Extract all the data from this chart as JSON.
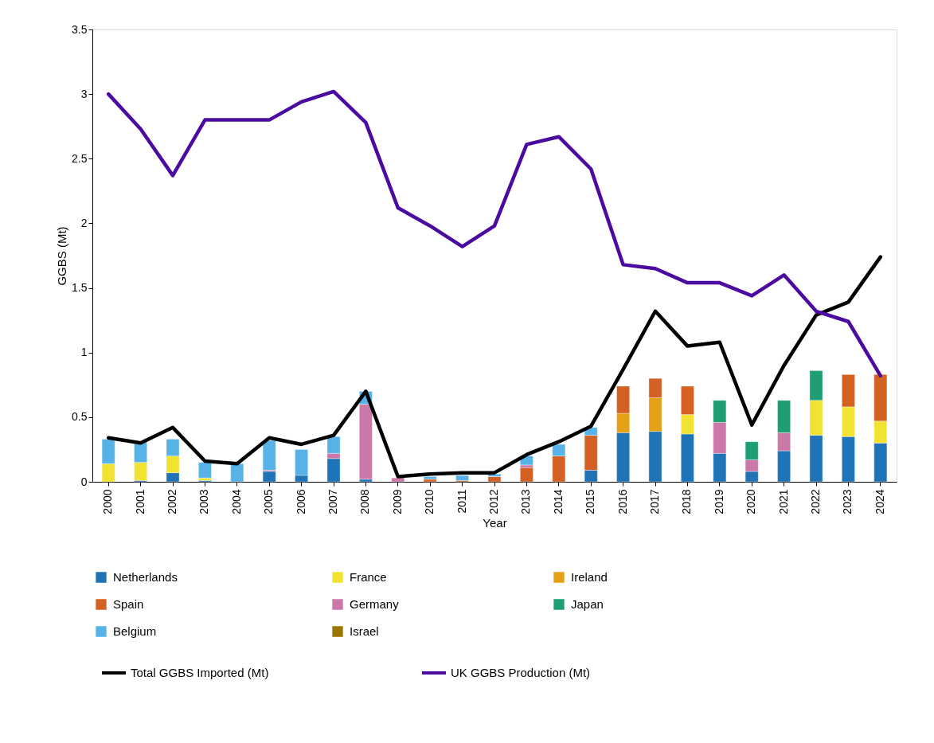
{
  "chart_data": {
    "type": "bar",
    "stacked": true,
    "xlabel": "Year",
    "ylabel": "GGBS (Mt)",
    "legend": "bottom",
    "grid": false,
    "marker": "none",
    "line_style": "solid",
    "categories": [
      "2000",
      "2001",
      "2002",
      "2003",
      "2004",
      "2005",
      "2006",
      "2007",
      "2008",
      "2009",
      "2010",
      "2011",
      "2012",
      "2013",
      "2014",
      "2015",
      "2016",
      "2017",
      "2018",
      "2019",
      "2020",
      "2021",
      "2022",
      "2023",
      "2024"
    ],
    "ylim": [
      0,
      3.5
    ],
    "yticks": [
      0,
      0.5,
      1,
      1.5,
      2,
      2.5,
      3,
      3.5
    ],
    "series": [
      {
        "name": "Netherlands",
        "type": "bar",
        "color": "#1f74b7",
        "values": [
          null,
          0.01,
          0.07,
          0.01,
          null,
          0.08,
          0.05,
          0.18,
          0.02,
          null,
          null,
          null,
          null,
          null,
          null,
          0.09,
          0.38,
          0.39,
          0.37,
          0.22,
          0.08,
          0.24,
          0.36,
          0.35,
          0.3
        ]
      },
      {
        "name": "France",
        "type": "bar",
        "color": "#f2e232",
        "values": [
          0.14,
          0.14,
          0.13,
          0.02,
          null,
          null,
          null,
          null,
          null,
          null,
          null,
          null,
          null,
          null,
          null,
          null,
          null,
          null,
          0.15,
          null,
          null,
          null,
          0.27,
          0.23,
          0.17
        ]
      },
      {
        "name": "Ireland",
        "type": "bar",
        "color": "#e5a015",
        "values": [
          null,
          null,
          null,
          null,
          null,
          null,
          null,
          null,
          null,
          null,
          null,
          null,
          null,
          null,
          null,
          null,
          0.15,
          0.26,
          null,
          null,
          null,
          null,
          null,
          null,
          null
        ]
      },
      {
        "name": "Spain",
        "type": "bar",
        "color": "#d46124",
        "values": [
          null,
          null,
          null,
          null,
          null,
          null,
          null,
          null,
          null,
          null,
          0.02,
          0.01,
          0.04,
          0.11,
          0.2,
          0.27,
          0.21,
          0.15,
          0.22,
          null,
          null,
          null,
          null,
          0.25,
          0.36
        ]
      },
      {
        "name": "Germany",
        "type": "bar",
        "color": "#cb78a8",
        "values": [
          null,
          null,
          null,
          null,
          null,
          0.01,
          null,
          0.04,
          0.58,
          0.03,
          null,
          null,
          null,
          0.02,
          null,
          null,
          null,
          null,
          null,
          0.24,
          0.09,
          0.14,
          null,
          null,
          null
        ]
      },
      {
        "name": "Japan",
        "type": "bar",
        "color": "#209e73",
        "values": [
          null,
          null,
          null,
          null,
          null,
          null,
          null,
          null,
          null,
          null,
          null,
          null,
          null,
          null,
          null,
          null,
          null,
          null,
          null,
          0.17,
          0.14,
          0.25,
          0.23,
          null,
          null
        ]
      },
      {
        "name": "Belgium",
        "type": "bar",
        "color": "#57b3e7",
        "values": [
          0.19,
          0.16,
          0.13,
          0.12,
          0.14,
          0.23,
          0.2,
          0.13,
          0.1,
          null,
          0.02,
          0.04,
          0.02,
          0.07,
          0.09,
          0.06,
          null,
          null,
          null,
          null,
          null,
          null,
          null,
          null,
          null
        ]
      },
      {
        "name": "Israel",
        "type": "bar",
        "color": "#9a7500",
        "values": [
          null,
          null,
          null,
          null,
          null,
          null,
          null,
          null,
          null,
          null,
          null,
          null,
          null,
          null,
          null,
          null,
          null,
          null,
          null,
          null,
          null,
          null,
          null,
          null,
          null
        ]
      },
      {
        "name": "Total GGBS Imported (Mt)",
        "type": "line",
        "color": "#000000",
        "values": [
          0.34,
          0.3,
          0.42,
          0.16,
          0.14,
          0.34,
          0.29,
          0.36,
          0.7,
          0.04,
          0.06,
          0.07,
          0.07,
          0.21,
          0.31,
          0.43,
          0.87,
          1.32,
          1.05,
          1.08,
          0.44,
          0.9,
          1.29,
          1.39,
          1.74
        ]
      },
      {
        "name": "UK GGBS Production (Mt)",
        "type": "line",
        "color": "#4b0aa0",
        "values": [
          3.0,
          2.73,
          2.37,
          2.8,
          2.8,
          2.8,
          2.94,
          3.02,
          2.78,
          2.12,
          1.98,
          1.82,
          1.98,
          2.61,
          2.67,
          2.42,
          1.68,
          1.65,
          1.54,
          1.54,
          1.44,
          1.6,
          1.32,
          1.24,
          0.82
        ]
      }
    ]
  }
}
